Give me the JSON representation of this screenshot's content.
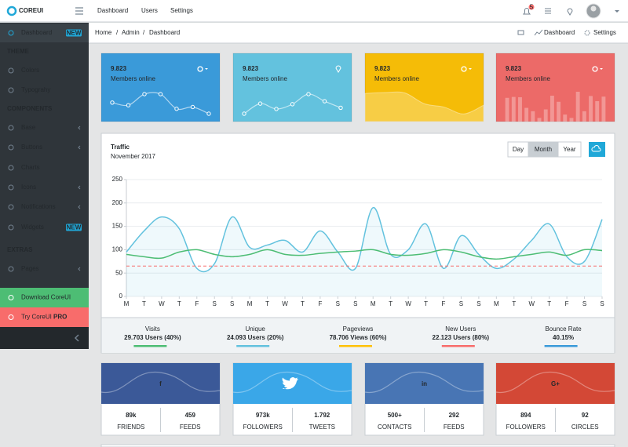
{
  "header": {
    "logo": "COREUI",
    "nav": [
      "Dashboard",
      "Users",
      "Settings"
    ],
    "badge": "5"
  },
  "breadcrumb": {
    "items": [
      "Home",
      "Admin",
      "Dashboard"
    ],
    "separator": "/",
    "actions": [
      "Dashboard",
      "Settings"
    ]
  },
  "sidebar": {
    "items": [
      {
        "label": "Dashboard",
        "badge": "NEW"
      },
      {
        "title": "THEME"
      },
      {
        "label": "Colors"
      },
      {
        "label": "Typograhy"
      },
      {
        "title": "COMPONENTS"
      },
      {
        "label": "Base",
        "dropdown": true
      },
      {
        "label": "Buttons",
        "dropdown": true
      },
      {
        "label": "Charts"
      },
      {
        "label": "Icons",
        "dropdown": true
      },
      {
        "label": "Notifications",
        "dropdown": true
      },
      {
        "label": "Widgets",
        "badge": "NEW"
      },
      {
        "title": "EXTRAS"
      },
      {
        "label": "Pages",
        "dropdown": true
      }
    ],
    "download": "Download CoreUI",
    "try": {
      "label": "Try CoreUI",
      "strong": "PRO"
    }
  },
  "stat_cards": [
    {
      "value": "9.823",
      "label": "Members online",
      "color": "#3a9ad9",
      "chart": {
        "type": "line",
        "values": [
          65,
          59,
          84,
          84,
          51,
          55,
          40
        ]
      }
    },
    {
      "value": "9.823",
      "label": "Members online",
      "color": "#63c2de",
      "chart": {
        "type": "line",
        "values": [
          1,
          18,
          9,
          17,
          34,
          22,
          11
        ]
      }
    },
    {
      "value": "9.823",
      "label": "Members online",
      "color": "#f5bc07",
      "chart": {
        "type": "area",
        "values": [
          78,
          81,
          80,
          45,
          34,
          12,
          40
        ]
      }
    },
    {
      "value": "9.823",
      "label": "Members online",
      "color": "#ec6a68",
      "chart": {
        "type": "bar",
        "values": [
          78,
          81,
          80,
          45,
          34,
          12,
          40,
          85,
          65,
          23,
          12,
          98,
          34,
          84,
          67,
          82
        ]
      }
    }
  ],
  "chart_data": {
    "type": "line",
    "title": "Traffic",
    "subtitle": "November 2017",
    "categories": [
      "M",
      "T",
      "W",
      "T",
      "F",
      "S",
      "S",
      "M",
      "T",
      "W",
      "T",
      "F",
      "S",
      "S",
      "M",
      "T",
      "W",
      "T",
      "F",
      "S",
      "S",
      "M",
      "T",
      "W",
      "T",
      "F",
      "S",
      "S"
    ],
    "series": [
      {
        "color": "#63c2de",
        "values": [
          95,
          140,
          170,
          145,
          60,
          70,
          170,
          105,
          110,
          120,
          95,
          140,
          95,
          60,
          190,
          90,
          100,
          155,
          60,
          130,
          90,
          60,
          80,
          120,
          155,
          85,
          75,
          165
        ]
      },
      {
        "color": "#4dbd74",
        "values": [
          90,
          85,
          82,
          95,
          100,
          90,
          85,
          90,
          100,
          90,
          88,
          92,
          95,
          97,
          100,
          90,
          88,
          92,
          100,
          95,
          85,
          80,
          85,
          90,
          95,
          88,
          100,
          98
        ]
      },
      {
        "color": "#f86c6b",
        "dashed": true,
        "values": [
          65,
          65,
          65,
          65,
          65,
          65,
          65,
          65,
          65,
          65,
          65,
          65,
          65,
          65,
          65,
          65,
          65,
          65,
          65,
          65,
          65,
          65,
          65,
          65,
          65,
          65,
          65,
          65
        ]
      }
    ],
    "ylim": [
      0,
      250
    ],
    "yticks": [
      0,
      50,
      100,
      150,
      200,
      250
    ],
    "grid": true
  },
  "traffic_controls": {
    "periods": [
      "Day",
      "Month",
      "Year"
    ],
    "active": 1
  },
  "traffic_summary": [
    {
      "label": "Visits",
      "value": "29.703 Users (40%)",
      "color": "#4dbd74"
    },
    {
      "label": "Unique",
      "value": "24.093 Users (20%)",
      "color": "#63c2de"
    },
    {
      "label": "Pageviews",
      "value": "78.706 Views (60%)",
      "color": "#ffc107"
    },
    {
      "label": "New Users",
      "value": "22.123 Users (80%)",
      "color": "#f86c6b"
    },
    {
      "label": "Bounce Rate",
      "value": "40.15%",
      "color": "#3a9ad9"
    }
  ],
  "social_cards": [
    {
      "icon": "f",
      "color": "#3b5998",
      "stats": [
        {
          "value": "89k",
          "label": "FRIENDS"
        },
        {
          "value": "459",
          "label": "FEEDS"
        }
      ]
    },
    {
      "color": "#3aa7e8",
      "stats": [
        {
          "value": "973k",
          "label": "FOLLOWERS"
        },
        {
          "value": "1.792",
          "label": "TWEETS"
        }
      ]
    },
    {
      "icon": "in",
      "color": "#4875b4",
      "stats": [
        {
          "value": "500+",
          "label": "CONTACTS"
        },
        {
          "value": "292",
          "label": "FEEDS"
        }
      ]
    },
    {
      "icon": "G+",
      "color": "#d34836",
      "stats": [
        {
          "value": "894",
          "label": "FOLLOWERS"
        },
        {
          "value": "92",
          "label": "CIRCLES"
        }
      ]
    }
  ]
}
